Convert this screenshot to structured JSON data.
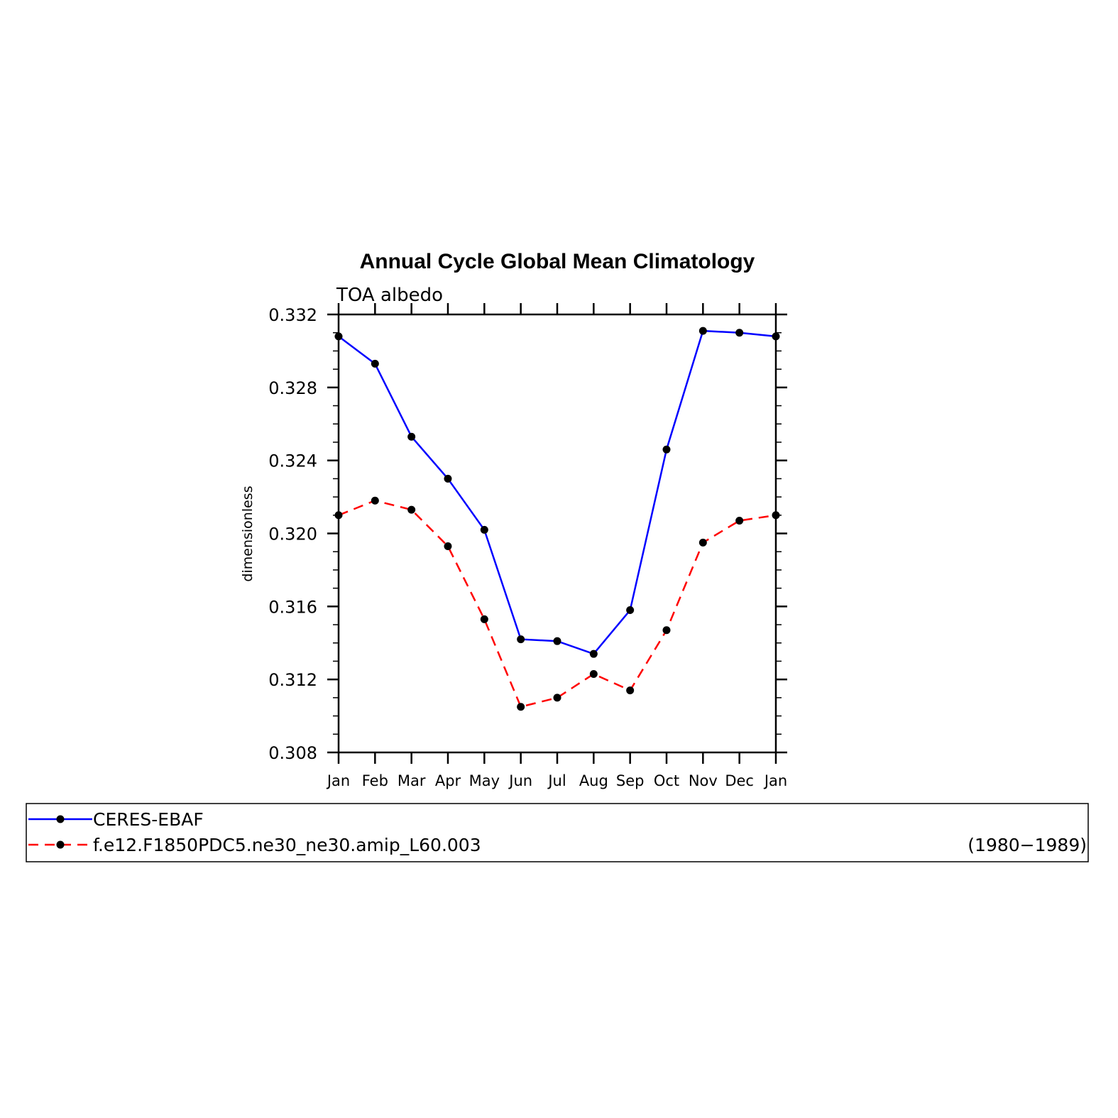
{
  "chart_data": {
    "type": "line",
    "title": "Annual Cycle Global Mean Climatology",
    "subtitle": "TOA albedo",
    "ylabel": "dimensionless",
    "xlabel": "",
    "categories": [
      "Jan",
      "Feb",
      "Mar",
      "Apr",
      "May",
      "Jun",
      "Jul",
      "Aug",
      "Sep",
      "Oct",
      "Nov",
      "Dec",
      "Jan"
    ],
    "ylim": [
      0.308,
      0.332
    ],
    "yticks": [
      "0.308",
      "0.312",
      "0.316",
      "0.320",
      "0.324",
      "0.328",
      "0.332"
    ],
    "ytick_values": [
      0.308,
      0.312,
      0.316,
      0.32,
      0.324,
      0.328,
      0.332
    ],
    "grid": false,
    "series": [
      {
        "name": "CERES-EBAF",
        "color": "#0000ff",
        "dash": "solid",
        "values": [
          0.3308,
          0.3293,
          0.3253,
          0.323,
          0.3202,
          0.3142,
          0.3141,
          0.3134,
          0.3158,
          0.3246,
          0.3311,
          0.331,
          0.3308
        ]
      },
      {
        "name": "f.e12.F1850PDC5.ne30_ne30.amip_L60.003",
        "color": "#ff0000",
        "dash": "dashed",
        "values": [
          0.321,
          0.3218,
          0.3213,
          0.3193,
          0.3153,
          0.3105,
          0.311,
          0.3123,
          0.3114,
          0.3147,
          0.3195,
          0.3207,
          0.321
        ]
      }
    ],
    "legend": {
      "placement": "bottom",
      "period": "(1980−1989)"
    }
  }
}
